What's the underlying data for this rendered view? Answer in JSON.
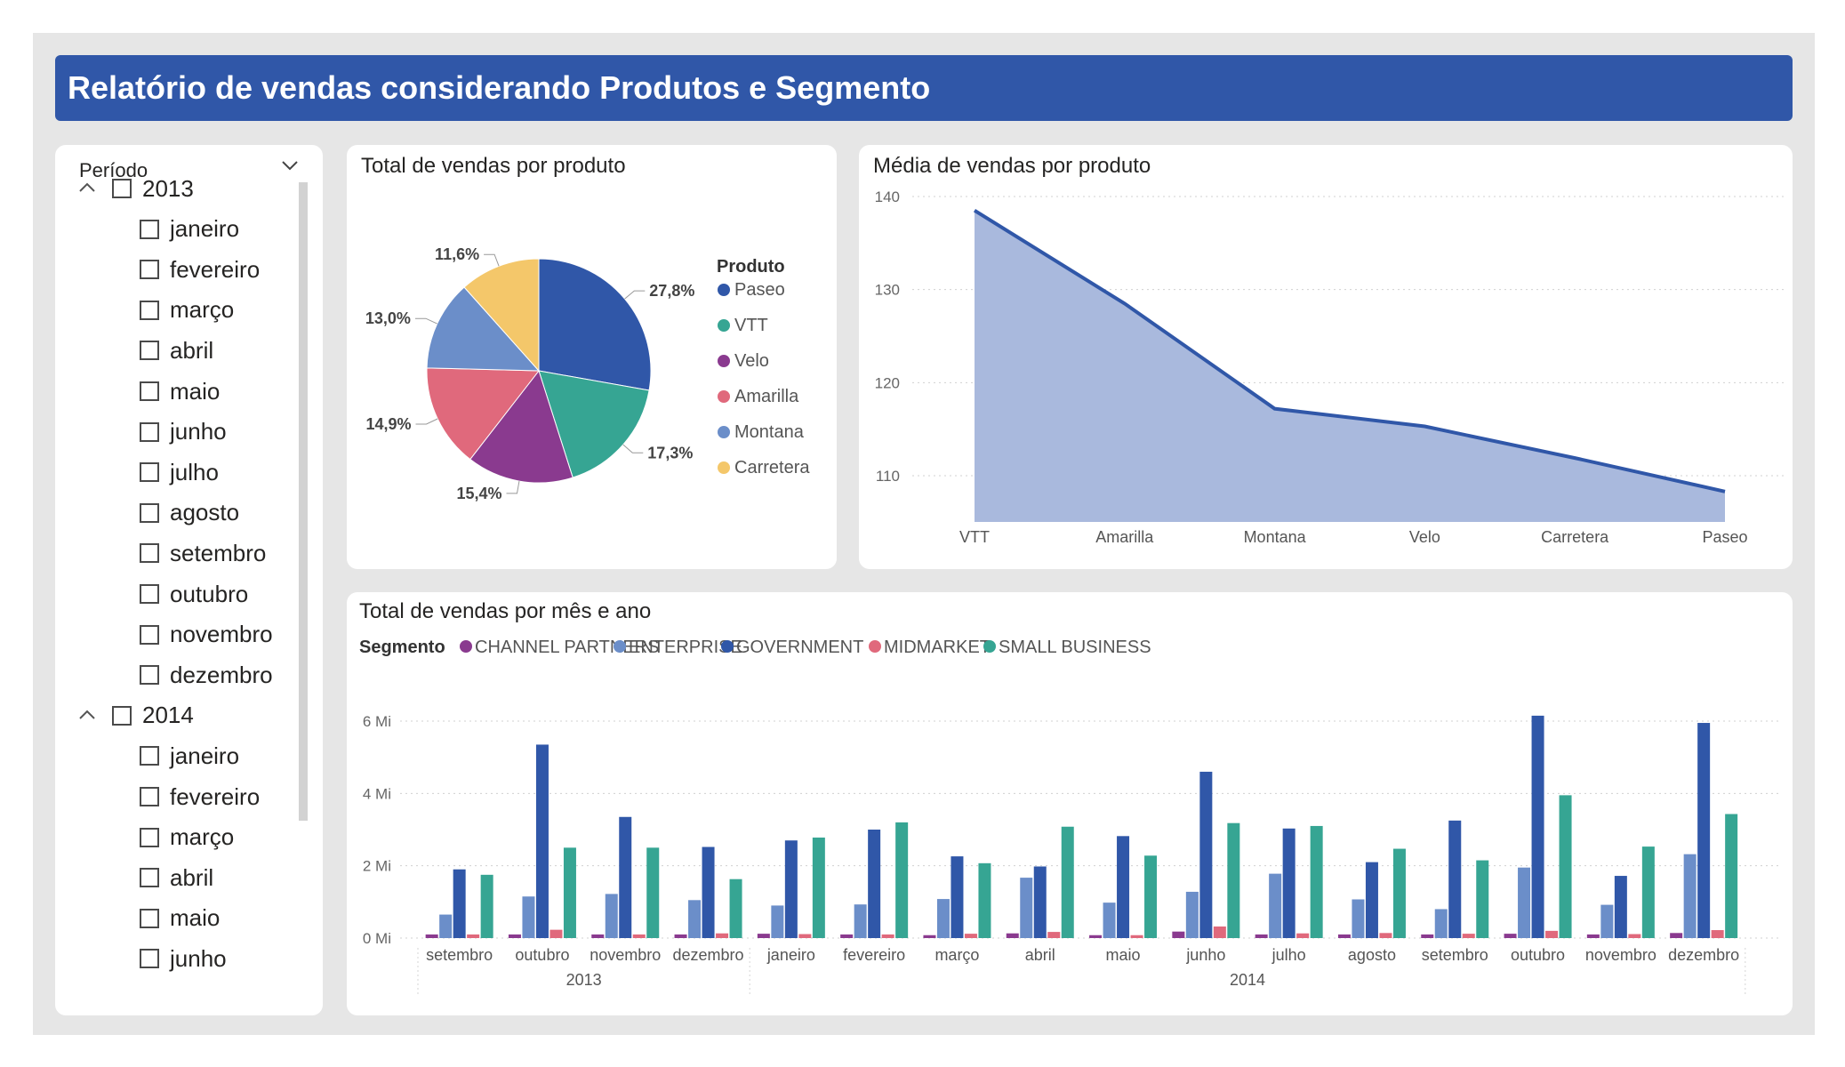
{
  "report_title": "Relatório de vendas considerando Produtos e Segmento",
  "slicer": {
    "header": "Período",
    "years": [
      {
        "year": "2013",
        "months": [
          "janeiro",
          "fevereiro",
          "março",
          "abril",
          "maio",
          "junho",
          "julho",
          "agosto",
          "setembro",
          "outubro",
          "novembro",
          "dezembro"
        ]
      },
      {
        "year": "2014",
        "months": [
          "janeiro",
          "fevereiro",
          "março",
          "abril",
          "maio",
          "junho"
        ]
      }
    ]
  },
  "colors": {
    "title_bar": "#3057a8",
    "Paseo": "#3057a8",
    "VTT": "#36a593",
    "Velo": "#8a3a8f",
    "Amarilla": "#e0697c",
    "Montana": "#6b8ec9",
    "Carretera": "#f4c76a",
    "area_fill": "#a9b9dd",
    "area_line": "#3057a8"
  },
  "pie_panel_title": "Total de vendas por produto",
  "area_panel_title": "Média de vendas por produto",
  "bar_panel_title": "Total de vendas por mês e ano",
  "chart_data": [
    {
      "type": "pie",
      "title": "Total de vendas por produto",
      "legend_title": "Produto",
      "legend_position": "right",
      "slices": [
        {
          "label": "Paseo",
          "value": 27.8,
          "display": "27,8%",
          "color": "#3057a8"
        },
        {
          "label": "VTT",
          "value": 17.3,
          "display": "17,3%",
          "color": "#36a593"
        },
        {
          "label": "Velo",
          "value": 15.4,
          "display": "15,4%",
          "color": "#8a3a8f"
        },
        {
          "label": "Amarilla",
          "value": 14.9,
          "display": "14,9%",
          "color": "#e0697c"
        },
        {
          "label": "Montana",
          "value": 13.0,
          "display": "13,0%",
          "color": "#6b8ec9"
        },
        {
          "label": "Carretera",
          "value": 11.6,
          "display": "11,6%",
          "color": "#f4c76a"
        }
      ]
    },
    {
      "type": "area",
      "title": "Média de vendas por produto",
      "categories": [
        "VTT",
        "Amarilla",
        "Montana",
        "Velo",
        "Carretera",
        "Paseo"
      ],
      "values": [
        138.5,
        128.5,
        117.2,
        115.3,
        111.9,
        108.3
      ],
      "ylim": [
        105,
        140
      ],
      "yticks": [
        110,
        120,
        130,
        140
      ],
      "grid": true
    },
    {
      "type": "bar",
      "title": "Total de vendas por mês e ano",
      "legend_title": "Segmento",
      "legend_position": "top-left",
      "ylim": [
        0,
        6.4
      ],
      "yticks": [
        {
          "v": 0,
          "label": "0 Mi"
        },
        {
          "v": 2,
          "label": "2 Mi"
        },
        {
          "v": 4,
          "label": "4 Mi"
        },
        {
          "v": 6,
          "label": "6 Mi"
        }
      ],
      "groups": [
        {
          "label": "2013",
          "count": 4
        },
        {
          "label": "2014",
          "count": 12
        }
      ],
      "categories": [
        "setembro",
        "outubro",
        "novembro",
        "dezembro",
        "janeiro",
        "fevereiro",
        "março",
        "abril",
        "maio",
        "junho",
        "julho",
        "agosto",
        "setembro",
        "outubro",
        "novembro",
        "dezembro"
      ],
      "series": [
        {
          "name": "CHANNEL PARTNERS",
          "color": "#8a3a8f",
          "values": [
            0.1,
            0.1,
            0.1,
            0.1,
            0.12,
            0.1,
            0.08,
            0.13,
            0.08,
            0.18,
            0.1,
            0.1,
            0.1,
            0.12,
            0.1,
            0.14
          ]
        },
        {
          "name": "ENTERPRISE",
          "color": "#6b8ec9",
          "values": [
            0.65,
            1.15,
            1.22,
            1.05,
            0.9,
            0.93,
            1.08,
            1.67,
            0.98,
            1.28,
            1.78,
            1.07,
            0.8,
            1.95,
            0.92,
            2.32
          ]
        },
        {
          "name": "GOVERNMENT",
          "color": "#3057a8",
          "values": [
            1.9,
            5.35,
            3.35,
            2.52,
            2.7,
            3.0,
            2.26,
            1.98,
            2.82,
            4.6,
            3.03,
            2.1,
            3.25,
            6.15,
            1.72,
            5.95
          ]
        },
        {
          "name": "MIDMARKET",
          "color": "#e0697c",
          "values": [
            0.1,
            0.23,
            0.1,
            0.13,
            0.11,
            0.1,
            0.12,
            0.17,
            0.08,
            0.32,
            0.13,
            0.14,
            0.12,
            0.2,
            0.11,
            0.22
          ]
        },
        {
          "name": "SMALL BUSINESS",
          "color": "#36a593",
          "values": [
            1.75,
            2.5,
            2.5,
            1.63,
            2.78,
            3.2,
            2.07,
            3.08,
            2.28,
            3.18,
            3.1,
            2.47,
            2.15,
            3.95,
            2.53,
            3.43
          ]
        }
      ]
    }
  ]
}
